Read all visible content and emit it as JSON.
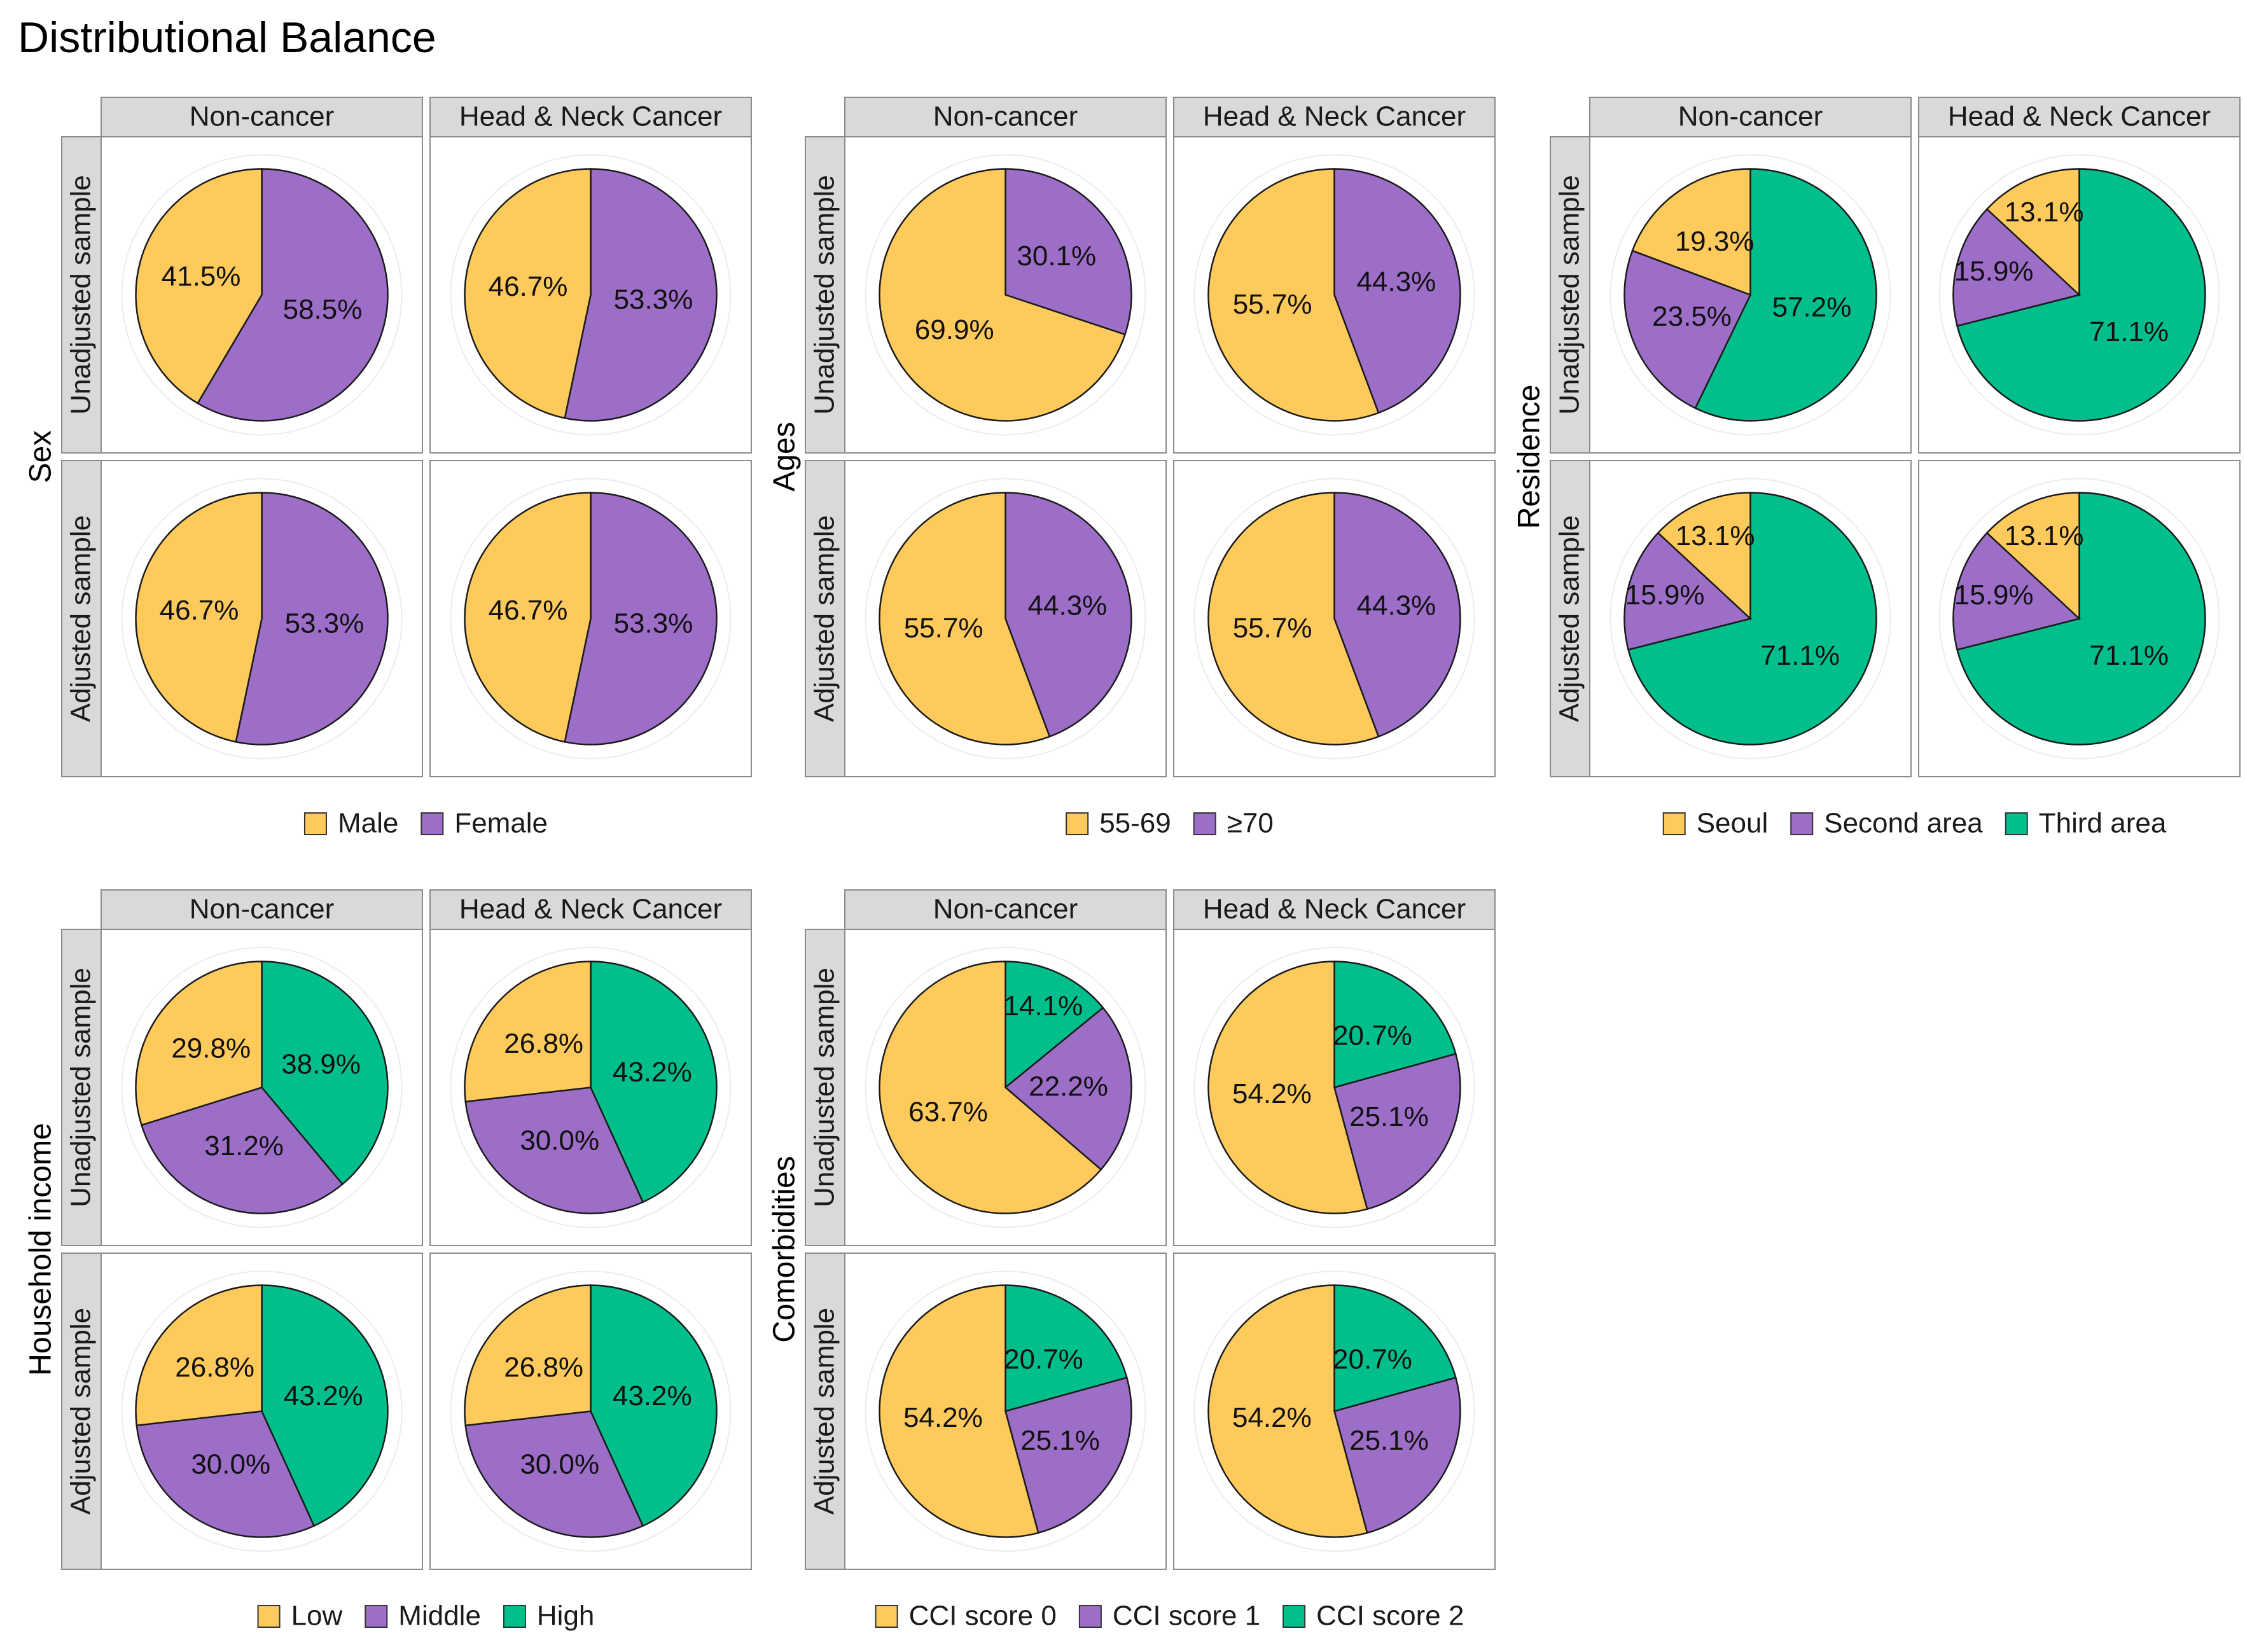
{
  "title": "Distributional Balance",
  "colors": {
    "yellow": "#FFCA5C",
    "purple": "#9D6EC8",
    "green": "#00BF8C",
    "strip": "#D9D9D9",
    "panel_border": "#8C8C8C",
    "slice_stroke": "#1A1A1A",
    "ring": "#ECECEC"
  },
  "column_labels": [
    "Non-cancer",
    "Head & Neck Cancer"
  ],
  "row_labels": [
    "Unadjusted sample",
    "Adjusted sample"
  ],
  "chart_data": [
    {
      "type": "pie",
      "variable": "Sex",
      "legend": [
        {
          "label": "Male",
          "color": "#FFCA5C"
        },
        {
          "label": "Female",
          "color": "#9D6EC8"
        }
      ],
      "panels": [
        {
          "row": "Unadjusted sample",
          "column": "Non-cancer",
          "labels": [
            "41.5%",
            "58.5%"
          ],
          "values": [
            41.5,
            58.5
          ]
        },
        {
          "row": "Unadjusted sample",
          "column": "Head & Neck Cancer",
          "labels": [
            "46.7%",
            "53.3%"
          ],
          "values": [
            46.7,
            53.3
          ]
        },
        {
          "row": "Adjusted sample",
          "column": "Non-cancer",
          "labels": [
            "46.7%",
            "53.3%"
          ],
          "values": [
            46.7,
            53.3
          ]
        },
        {
          "row": "Adjusted sample",
          "column": "Head & Neck Cancer",
          "labels": [
            "46.7%",
            "53.3%"
          ],
          "values": [
            46.7,
            53.3
          ]
        }
      ]
    },
    {
      "type": "pie",
      "variable": "Ages",
      "legend": [
        {
          "label": "55-69",
          "color": "#FFCA5C"
        },
        {
          "label": "≥70",
          "color": "#9D6EC8"
        }
      ],
      "panels": [
        {
          "row": "Unadjusted sample",
          "column": "Non-cancer",
          "labels": [
            "69.9%",
            "30.1%"
          ],
          "values": [
            69.9,
            30.1
          ]
        },
        {
          "row": "Unadjusted sample",
          "column": "Head & Neck Cancer",
          "labels": [
            "55.7%",
            "44.3%"
          ],
          "values": [
            55.7,
            44.3
          ]
        },
        {
          "row": "Adjusted sample",
          "column": "Non-cancer",
          "labels": [
            "55.7%",
            "44.3%"
          ],
          "values": [
            55.7,
            44.3
          ]
        },
        {
          "row": "Adjusted sample",
          "column": "Head & Neck Cancer",
          "labels": [
            "55.7%",
            "44.3%"
          ],
          "values": [
            55.7,
            44.3
          ]
        }
      ]
    },
    {
      "type": "pie",
      "variable": "Residence",
      "legend": [
        {
          "label": "Seoul",
          "color": "#FFCA5C"
        },
        {
          "label": "Second area",
          "color": "#9D6EC8"
        },
        {
          "label": "Third area",
          "color": "#00BF8C"
        }
      ],
      "panels": [
        {
          "row": "Unadjusted sample",
          "column": "Non-cancer",
          "labels": [
            "19.3%",
            "23.5%",
            "57.2%"
          ],
          "values": [
            19.3,
            23.5,
            57.2
          ]
        },
        {
          "row": "Unadjusted sample",
          "column": "Head & Neck Cancer",
          "labels": [
            "13.1%",
            "15.9%",
            "71.1%"
          ],
          "values": [
            13.1,
            15.9,
            71.1
          ]
        },
        {
          "row": "Adjusted sample",
          "column": "Non-cancer",
          "labels": [
            "13.1%",
            "15.9%",
            "71.1%"
          ],
          "values": [
            13.1,
            15.9,
            71.1
          ]
        },
        {
          "row": "Adjusted sample",
          "column": "Head & Neck Cancer",
          "labels": [
            "13.1%",
            "15.9%",
            "71.1%"
          ],
          "values": [
            13.1,
            15.9,
            71.1
          ]
        }
      ]
    },
    {
      "type": "pie",
      "variable": "Household income",
      "legend": [
        {
          "label": "Low",
          "color": "#FFCA5C"
        },
        {
          "label": "Middle",
          "color": "#9D6EC8"
        },
        {
          "label": "High",
          "color": "#00BF8C"
        }
      ],
      "panels": [
        {
          "row": "Unadjusted sample",
          "column": "Non-cancer",
          "labels": [
            "29.8%",
            "31.2%",
            "38.9%"
          ],
          "values": [
            29.8,
            31.2,
            38.9
          ]
        },
        {
          "row": "Unadjusted sample",
          "column": "Head & Neck Cancer",
          "labels": [
            "26.8%",
            "30.0%",
            "43.2%"
          ],
          "values": [
            26.8,
            30.0,
            43.2
          ]
        },
        {
          "row": "Adjusted sample",
          "column": "Non-cancer",
          "labels": [
            "26.8%",
            "30.0%",
            "43.2%"
          ],
          "values": [
            26.8,
            30.0,
            43.2
          ]
        },
        {
          "row": "Adjusted sample",
          "column": "Head & Neck Cancer",
          "labels": [
            "26.8%",
            "30.0%",
            "43.2%"
          ],
          "values": [
            26.8,
            30.0,
            43.2
          ]
        }
      ]
    },
    {
      "type": "pie",
      "variable": "Comorbidities",
      "legend": [
        {
          "label": "CCI score 0",
          "color": "#FFCA5C"
        },
        {
          "label": "CCI score 1",
          "color": "#9D6EC8"
        },
        {
          "label": "CCI score 2",
          "color": "#00BF8C"
        }
      ],
      "panels": [
        {
          "row": "Unadjusted sample",
          "column": "Non-cancer",
          "labels": [
            "63.7%",
            "22.2%",
            "14.1%"
          ],
          "values": [
            63.7,
            22.2,
            14.1
          ]
        },
        {
          "row": "Unadjusted sample",
          "column": "Head & Neck Cancer",
          "labels": [
            "54.2%",
            "25.1%",
            "20.7%"
          ],
          "values": [
            54.2,
            25.1,
            20.7
          ]
        },
        {
          "row": "Adjusted sample",
          "column": "Non-cancer",
          "labels": [
            "54.2%",
            "25.1%",
            "20.7%"
          ],
          "values": [
            54.2,
            25.1,
            20.7
          ]
        },
        {
          "row": "Adjusted sample",
          "column": "Head & Neck Cancer",
          "labels": [
            "54.2%",
            "25.1%",
            "20.7%"
          ],
          "values": [
            54.2,
            25.1,
            20.7
          ]
        }
      ]
    }
  ]
}
